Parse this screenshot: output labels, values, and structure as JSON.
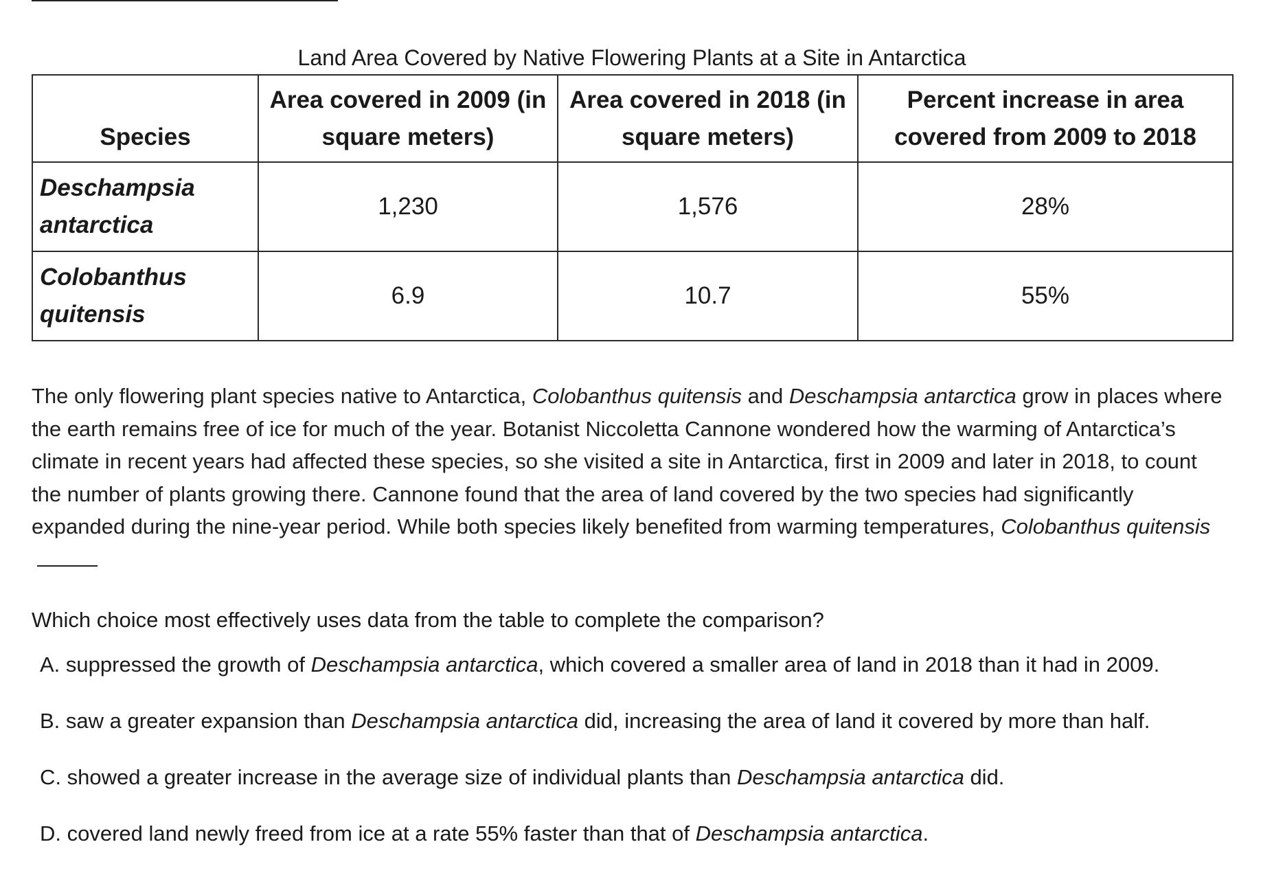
{
  "table": {
    "caption": "Land Area Covered by Native Flowering Plants at a Site in Antarctica",
    "headers": [
      "Species",
      "Area covered in 2009 (in square meters)",
      "Area covered in 2018 (in square meters)",
      "Percent increase in area covered from 2009 to 2018"
    ],
    "rows": [
      {
        "species": "Deschampsia antarctica",
        "area_2009": "1,230",
        "area_2018": "1,576",
        "percent_increase": "28%"
      },
      {
        "species": "Colobanthus quitensis",
        "area_2009": "6.9",
        "area_2018": "10.7",
        "percent_increase": "55%"
      }
    ]
  },
  "passage": {
    "p1": "The only flowering plant species native to Antarctica, ",
    "species_c": "Colobanthus quitensis",
    "p2": " and ",
    "species_d": "Deschampsia antarctica",
    "p3": " grow in places where the earth remains free of ice for much of the year. Botanist Niccoletta Cannone wondered how the warming of Antarctica’s climate in recent years had affected these species, so she visited a site in Antarctica, first in 2009 and later in 2018, to count the number of plants growing there. Cannone found that the area of land covered by the two species had significantly expanded during the nine-year period. While both species likely benefited from warming temperatures, ",
    "species_c_end": "Colobanthus quitensis"
  },
  "question": "Which choice most effectively uses data from the table to complete the comparison?",
  "choices": [
    {
      "pre": "A. suppressed the growth of ",
      "species": "Deschampsia antarctica",
      "post": ", which covered a smaller area of land in 2018 than it had in 2009."
    },
    {
      "pre": "B. saw a greater expansion than ",
      "species": "Deschampsia antarctica",
      "post": " did, increasing the area of land it covered by more than half."
    },
    {
      "pre": "C. showed a greater increase in the average size of individual plants than ",
      "species": "Deschampsia antarctica",
      "post": " did."
    },
    {
      "pre": "D. covered land newly freed from ice at a rate 55% faster than that of ",
      "species": "Deschampsia antarctica",
      "post": "."
    }
  ]
}
